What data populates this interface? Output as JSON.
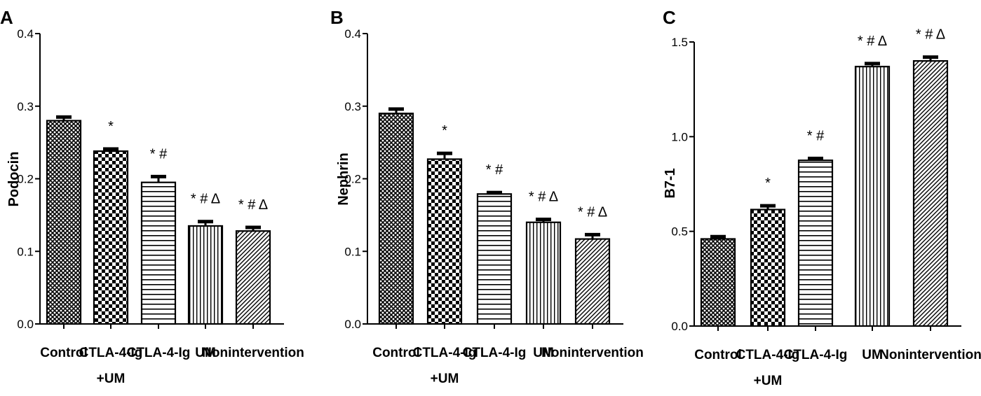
{
  "chart_data": [
    {
      "type": "bar",
      "panel_label": "A",
      "ylabel": "Podocin",
      "ylim": [
        0,
        0.4
      ],
      "yticks": [
        "0.0",
        "0.1",
        "0.2",
        "0.3",
        "0.4"
      ],
      "categories": [
        {
          "line1": "Control",
          "line2": ""
        },
        {
          "line1": "CTLA-4-Ig",
          "line2": "+UM"
        },
        {
          "line1": "CTLA-4-Ig",
          "line2": ""
        },
        {
          "line1": "UM",
          "line2": ""
        },
        {
          "line1": "Nonintervention",
          "line2": ""
        }
      ],
      "values": [
        0.28,
        0.238,
        0.195,
        0.135,
        0.128
      ],
      "errors": [
        0.005,
        0.003,
        0.008,
        0.006,
        0.005
      ],
      "patterns": [
        "cross-hatch",
        "checker",
        "horizontal",
        "vertical",
        "diagonal"
      ],
      "significance": [
        "",
        "*",
        "* #",
        "* # Δ",
        "* # Δ"
      ],
      "grid": false
    },
    {
      "type": "bar",
      "panel_label": "B",
      "ylabel": "Nephrin",
      "ylim": [
        0,
        0.4
      ],
      "yticks": [
        "0.0",
        "0.1",
        "0.2",
        "0.3",
        "0.4"
      ],
      "categories": [
        {
          "line1": "Control",
          "line2": ""
        },
        {
          "line1": "CTLA-4-Ig",
          "line2": "+UM"
        },
        {
          "line1": "CTLA-4-Ig",
          "line2": ""
        },
        {
          "line1": "UM",
          "line2": ""
        },
        {
          "line1": "Nonintervention",
          "line2": ""
        }
      ],
      "values": [
        0.29,
        0.227,
        0.179,
        0.14,
        0.117
      ],
      "errors": [
        0.006,
        0.008,
        0.002,
        0.004,
        0.006
      ],
      "patterns": [
        "cross-hatch",
        "checker",
        "horizontal",
        "vertical",
        "diagonal"
      ],
      "significance": [
        "",
        "*",
        "* #",
        "* # Δ",
        "* # Δ"
      ],
      "grid": false
    },
    {
      "type": "bar",
      "panel_label": "C",
      "ylabel": "B7-1",
      "ylim": [
        0,
        1.5
      ],
      "yticks": [
        "0.0",
        "0.5",
        "1.0",
        "1.5"
      ],
      "categories": [
        {
          "line1": "Control",
          "line2": ""
        },
        {
          "line1": "CTLA-4-Ig",
          "line2": "+UM"
        },
        {
          "line1": "CTLA-4-Ig",
          "line2": ""
        },
        {
          "line1": "UM",
          "line2": ""
        },
        {
          "line1": "Nonintervention",
          "line2": ""
        }
      ],
      "values": [
        0.46,
        0.615,
        0.875,
        1.37,
        1.4
      ],
      "errors": [
        0.012,
        0.02,
        0.01,
        0.016,
        0.02
      ],
      "patterns": [
        "cross-hatch",
        "checker",
        "horizontal",
        "vertical",
        "diagonal"
      ],
      "significance": [
        "",
        "*",
        "* #",
        "* # Δ",
        "* # Δ"
      ],
      "grid": false
    }
  ]
}
